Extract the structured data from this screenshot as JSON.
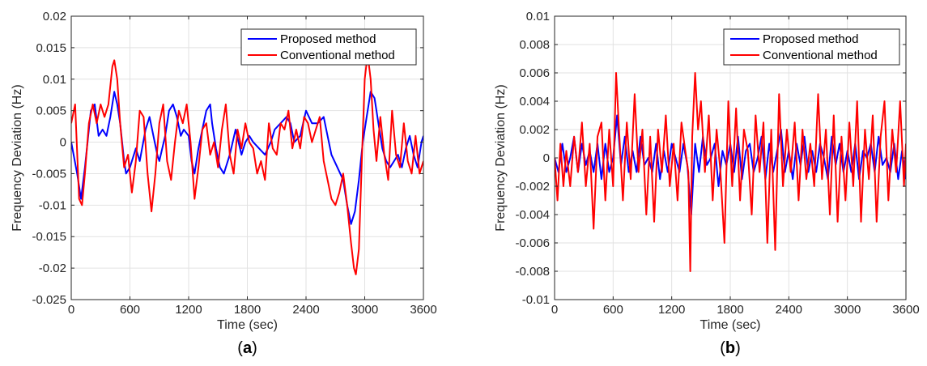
{
  "chart_data": [
    {
      "type": "line",
      "panel_label": "(a)",
      "xlabel": "Time (sec)",
      "ylabel": "Frequency Deviation (Hz)",
      "xlim": [
        0,
        3600
      ],
      "ylim": [
        -0.025,
        0.02
      ],
      "xticks": [
        "0",
        "600",
        "1200",
        "1800",
        "2400",
        "3000",
        "3600"
      ],
      "yticks": [
        "-0.025",
        "-0.02",
        "-0.015",
        "-0.01",
        "-0.005",
        "0",
        "0.005",
        "0.01",
        "0.015",
        "0.02"
      ],
      "grid": true,
      "legend": "top-right",
      "series": [
        {
          "name": "Proposed method",
          "color": "#0000ff",
          "x": [
            0,
            60,
            100,
            140,
            200,
            240,
            280,
            320,
            360,
            400,
            440,
            470,
            500,
            540,
            560,
            600,
            660,
            700,
            760,
            800,
            840,
            880,
            900,
            960,
            1000,
            1040,
            1080,
            1120,
            1150,
            1200,
            1230,
            1260,
            1300,
            1340,
            1380,
            1420,
            1440,
            1480,
            1520,
            1560,
            1620,
            1680,
            1740,
            1780,
            1820,
            1860,
            1920,
            1980,
            2040,
            2080,
            2140,
            2200,
            2240,
            2280,
            2340,
            2400,
            2460,
            2520,
            2580,
            2620,
            2660,
            2720,
            2780,
            2820,
            2860,
            2900,
            2940,
            2980,
            3020,
            3060,
            3100,
            3140,
            3180,
            3220,
            3260,
            3300,
            3340,
            3380,
            3420,
            3460,
            3500,
            3540,
            3580,
            3600
          ],
          "y": [
            0.0,
            -0.005,
            -0.009,
            -0.004,
            0.005,
            0.006,
            0.001,
            0.002,
            0.001,
            0.004,
            0.008,
            0.006,
            0.003,
            -0.003,
            -0.005,
            -0.004,
            -0.001,
            -0.003,
            0.002,
            0.004,
            0.001,
            -0.002,
            -0.003,
            0.001,
            0.005,
            0.006,
            0.004,
            0.001,
            0.002,
            0.001,
            -0.003,
            -0.005,
            -0.001,
            0.002,
            0.005,
            0.006,
            0.003,
            -0.001,
            -0.004,
            -0.005,
            -0.002,
            0.002,
            -0.002,
            0.0,
            0.001,
            0.0,
            -0.001,
            -0.002,
            0.0,
            0.002,
            0.003,
            0.004,
            0.003,
            0.0,
            0.001,
            0.005,
            0.003,
            0.003,
            0.004,
            0.001,
            -0.002,
            -0.004,
            -0.006,
            -0.01,
            -0.013,
            -0.011,
            -0.006,
            0.0,
            0.004,
            0.008,
            0.007,
            0.003,
            -0.001,
            -0.003,
            -0.004,
            -0.003,
            -0.002,
            -0.004,
            -0.001,
            0.001,
            -0.002,
            -0.004,
            0.0,
            0.001
          ]
        },
        {
          "name": "Conventional method",
          "color": "#ff0000",
          "x": [
            0,
            40,
            80,
            110,
            140,
            180,
            220,
            260,
            300,
            340,
            380,
            420,
            440,
            470,
            500,
            540,
            580,
            620,
            660,
            700,
            740,
            780,
            820,
            860,
            900,
            940,
            980,
            1020,
            1060,
            1100,
            1140,
            1180,
            1220,
            1260,
            1300,
            1340,
            1380,
            1420,
            1460,
            1500,
            1540,
            1580,
            1620,
            1660,
            1700,
            1740,
            1780,
            1820,
            1860,
            1900,
            1940,
            1980,
            2020,
            2060,
            2100,
            2140,
            2180,
            2220,
            2260,
            2300,
            2340,
            2380,
            2420,
            2460,
            2500,
            2540,
            2580,
            2620,
            2660,
            2700,
            2740,
            2780,
            2820,
            2860,
            2890,
            2910,
            2940,
            2970,
            3000,
            3030,
            3060,
            3090,
            3120,
            3160,
            3200,
            3240,
            3280,
            3320,
            3360,
            3400,
            3440,
            3480,
            3520,
            3560,
            3600
          ],
          "y": [
            0.003,
            0.006,
            -0.009,
            -0.01,
            -0.005,
            0.003,
            0.006,
            0.003,
            0.006,
            0.004,
            0.006,
            0.012,
            0.013,
            0.01,
            0.003,
            -0.004,
            -0.002,
            -0.008,
            -0.003,
            0.005,
            0.004,
            -0.005,
            -0.011,
            -0.005,
            0.003,
            0.006,
            -0.003,
            -0.006,
            0.0,
            0.005,
            0.003,
            0.006,
            0.0,
            -0.009,
            -0.004,
            0.002,
            0.003,
            -0.002,
            0.0,
            -0.004,
            0.002,
            0.006,
            -0.002,
            -0.005,
            0.002,
            -0.001,
            0.003,
            0.0,
            -0.001,
            -0.005,
            -0.003,
            -0.006,
            0.003,
            -0.001,
            -0.002,
            0.003,
            0.002,
            0.005,
            -0.001,
            0.002,
            -0.001,
            0.004,
            0.003,
            0.0,
            0.002,
            0.004,
            -0.003,
            -0.006,
            -0.009,
            -0.01,
            -0.008,
            -0.005,
            -0.01,
            -0.016,
            -0.02,
            -0.021,
            -0.017,
            -0.003,
            0.01,
            0.014,
            0.01,
            0.002,
            -0.003,
            0.004,
            -0.002,
            -0.006,
            0.005,
            -0.002,
            -0.004,
            0.003,
            -0.003,
            -0.005,
            0.001,
            -0.005,
            -0.003
          ]
        }
      ]
    },
    {
      "type": "line",
      "panel_label": "(b)",
      "xlabel": "Time (sec)",
      "ylabel": "Frequency Deviation (Hz)",
      "xlim": [
        0,
        3600
      ],
      "ylim": [
        -0.01,
        0.01
      ],
      "xticks": [
        "0",
        "600",
        "1200",
        "1800",
        "2400",
        "3000",
        "3600"
      ],
      "yticks": [
        "-0.01",
        "-0.008",
        "-0.006",
        "-0.004",
        "-0.002",
        "0",
        "0.002",
        "0.004",
        "0.006",
        "0.008",
        "0.01"
      ],
      "grid": true,
      "legend": "top-right",
      "series": [
        {
          "name": "Proposed method",
          "color": "#0000ff",
          "x": [
            0,
            40,
            80,
            120,
            160,
            200,
            240,
            280,
            320,
            360,
            400,
            440,
            480,
            520,
            560,
            600,
            640,
            680,
            720,
            760,
            800,
            840,
            880,
            920,
            960,
            1000,
            1040,
            1080,
            1120,
            1160,
            1200,
            1240,
            1280,
            1320,
            1360,
            1400,
            1440,
            1480,
            1520,
            1560,
            1600,
            1640,
            1680,
            1720,
            1760,
            1800,
            1840,
            1880,
            1920,
            1960,
            2000,
            2040,
            2080,
            2120,
            2160,
            2200,
            2240,
            2280,
            2320,
            2360,
            2400,
            2440,
            2480,
            2520,
            2560,
            2600,
            2640,
            2680,
            2720,
            2760,
            2800,
            2840,
            2880,
            2920,
            2960,
            3000,
            3040,
            3080,
            3120,
            3160,
            3200,
            3240,
            3280,
            3320,
            3360,
            3400,
            3440,
            3480,
            3520,
            3560,
            3600
          ],
          "y": [
            0.0,
            -0.001,
            0.001,
            -0.001,
            0.0,
            0.0015,
            -0.001,
            0.001,
            -0.0005,
            0.0005,
            -0.001,
            0.001,
            -0.0015,
            0.001,
            -0.001,
            0.0,
            0.003,
            -0.0005,
            0.0015,
            -0.001,
            0.0005,
            -0.001,
            0.0015,
            -0.0005,
            0.0,
            -0.001,
            0.001,
            -0.0015,
            0.0005,
            -0.001,
            0.001,
            0.0,
            -0.001,
            0.001,
            -0.0005,
            -0.004,
            0.001,
            -0.001,
            0.0015,
            -0.0005,
            0.0,
            0.001,
            -0.002,
            0.0005,
            -0.0005,
            0.001,
            -0.001,
            0.0015,
            -0.0015,
            0.0005,
            0.001,
            -0.001,
            0.0,
            0.0015,
            -0.0015,
            0.001,
            -0.001,
            0.0005,
            0.002,
            -0.001,
            0.0005,
            -0.0015,
            0.001,
            -0.0005,
            0.0015,
            -0.001,
            0.0005,
            -0.001,
            0.001,
            0.0,
            -0.0015,
            0.0015,
            -0.0005,
            0.001,
            -0.001,
            0.0005,
            -0.001,
            0.001,
            -0.0015,
            0.0005,
            0.0,
            0.001,
            -0.001,
            0.0015,
            -0.0005,
            0.0,
            -0.001,
            0.001,
            -0.0015,
            0.0005,
            -0.0015
          ]
        },
        {
          "name": "Conventional method",
          "color": "#ff0000",
          "x": [
            0,
            30,
            60,
            90,
            120,
            160,
            200,
            240,
            280,
            320,
            360,
            400,
            440,
            480,
            520,
            560,
            600,
            630,
            660,
            700,
            740,
            780,
            820,
            860,
            900,
            940,
            980,
            1020,
            1060,
            1100,
            1140,
            1180,
            1220,
            1260,
            1300,
            1340,
            1370,
            1390,
            1410,
            1440,
            1470,
            1500,
            1540,
            1580,
            1620,
            1660,
            1700,
            1740,
            1780,
            1820,
            1860,
            1900,
            1940,
            1980,
            2020,
            2060,
            2100,
            2140,
            2180,
            2220,
            2260,
            2300,
            2340,
            2380,
            2420,
            2460,
            2500,
            2540,
            2580,
            2620,
            2660,
            2700,
            2740,
            2780,
            2820,
            2860,
            2900,
            2940,
            2980,
            3020,
            3060,
            3100,
            3140,
            3180,
            3220,
            3260,
            3300,
            3340,
            3380,
            3420,
            3460,
            3500,
            3540,
            3580,
            3600
          ],
          "y": [
            0.0,
            -0.003,
            0.001,
            -0.002,
            0.0005,
            -0.002,
            0.0015,
            -0.001,
            0.0025,
            -0.002,
            0.001,
            -0.005,
            0.0015,
            0.0025,
            -0.003,
            0.002,
            -0.002,
            0.006,
            0.002,
            -0.003,
            0.0025,
            -0.0015,
            0.0045,
            -0.001,
            0.002,
            -0.004,
            0.0015,
            -0.0045,
            0.002,
            -0.001,
            0.003,
            -0.002,
            0.001,
            -0.003,
            0.0025,
            0.0005,
            -0.001,
            -0.008,
            0.0015,
            0.006,
            0.002,
            0.004,
            -0.001,
            0.003,
            -0.003,
            0.002,
            -0.001,
            -0.006,
            0.004,
            -0.002,
            0.0035,
            -0.003,
            0.002,
            0.0005,
            -0.004,
            0.003,
            -0.001,
            0.0025,
            -0.006,
            0.002,
            -0.0065,
            0.0045,
            -0.002,
            0.002,
            -0.001,
            0.0025,
            -0.003,
            0.002,
            -0.0015,
            0.001,
            -0.002,
            0.0045,
            -0.0015,
            0.002,
            -0.004,
            0.003,
            -0.0045,
            0.0015,
            -0.003,
            0.0025,
            -0.002,
            0.004,
            -0.0045,
            0.002,
            -0.0015,
            0.003,
            -0.0045,
            0.0015,
            0.004,
            -0.003,
            0.002,
            -0.001,
            0.004,
            -0.002,
            0.001
          ]
        }
      ]
    }
  ]
}
